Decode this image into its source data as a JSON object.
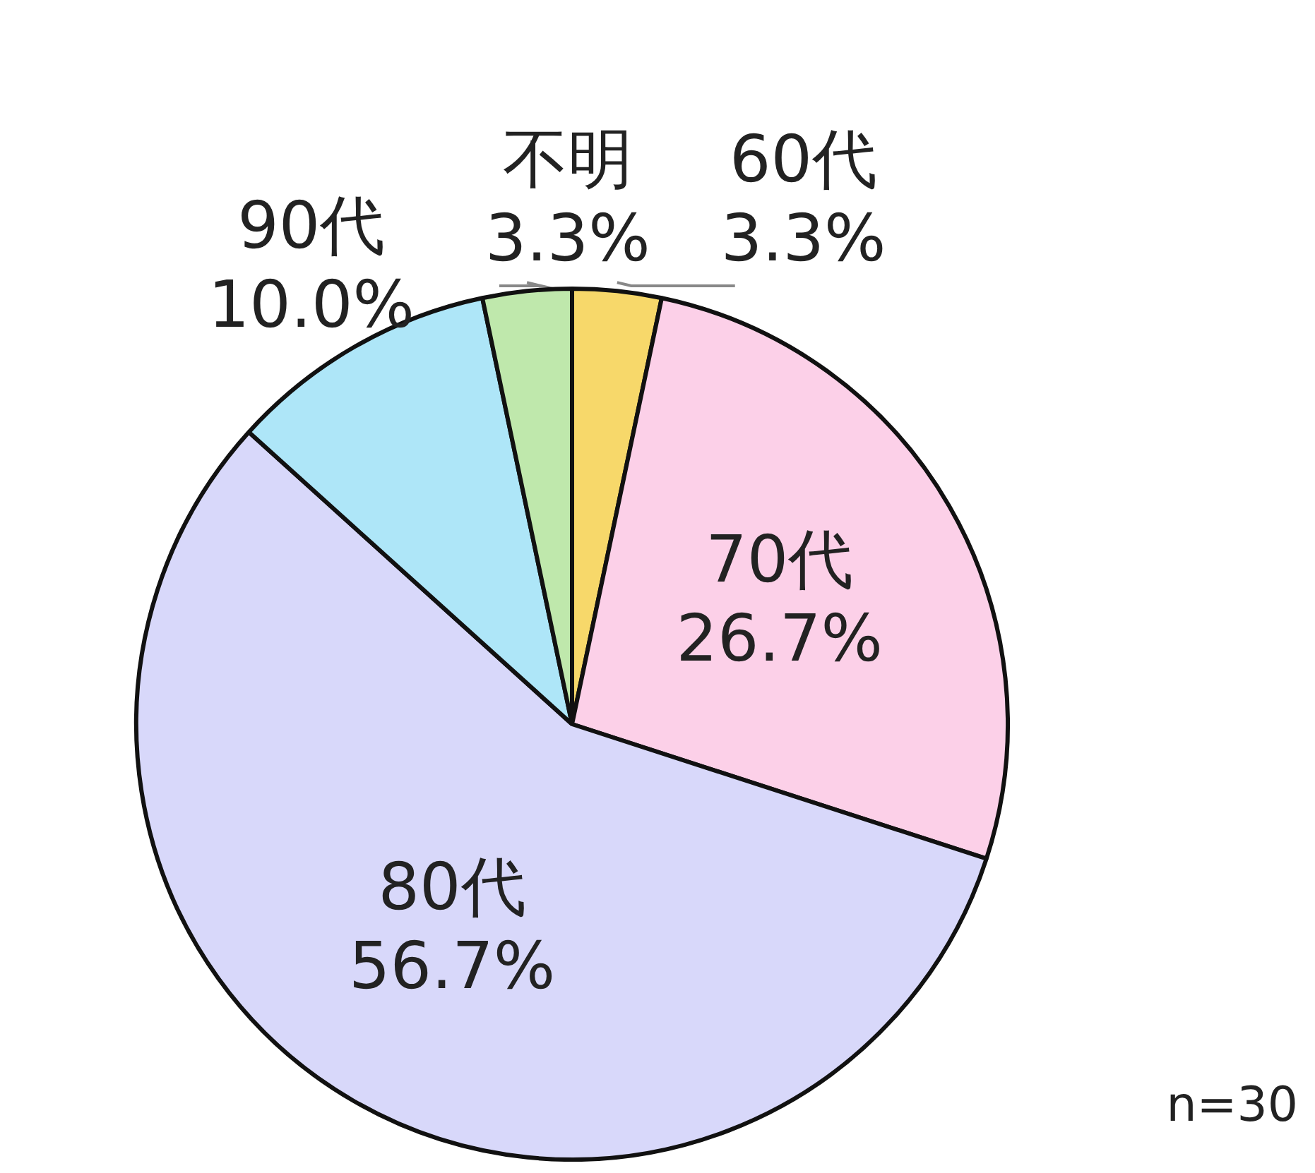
{
  "chart_data": {
    "type": "pie",
    "categories": [
      "60代",
      "70代",
      "80代",
      "90代",
      "不明"
    ],
    "values": [
      3.3,
      26.7,
      56.7,
      10.0,
      3.3
    ],
    "colors": [
      "#f7d86a",
      "#fcd0e8",
      "#d8d8fa",
      "#aee6f8",
      "#bfe8ac"
    ],
    "value_labels": [
      "3.3%",
      "26.7%",
      "56.7%",
      "10.0%",
      "3.3%"
    ],
    "legend": false,
    "annotations": [
      "n=30"
    ]
  }
}
